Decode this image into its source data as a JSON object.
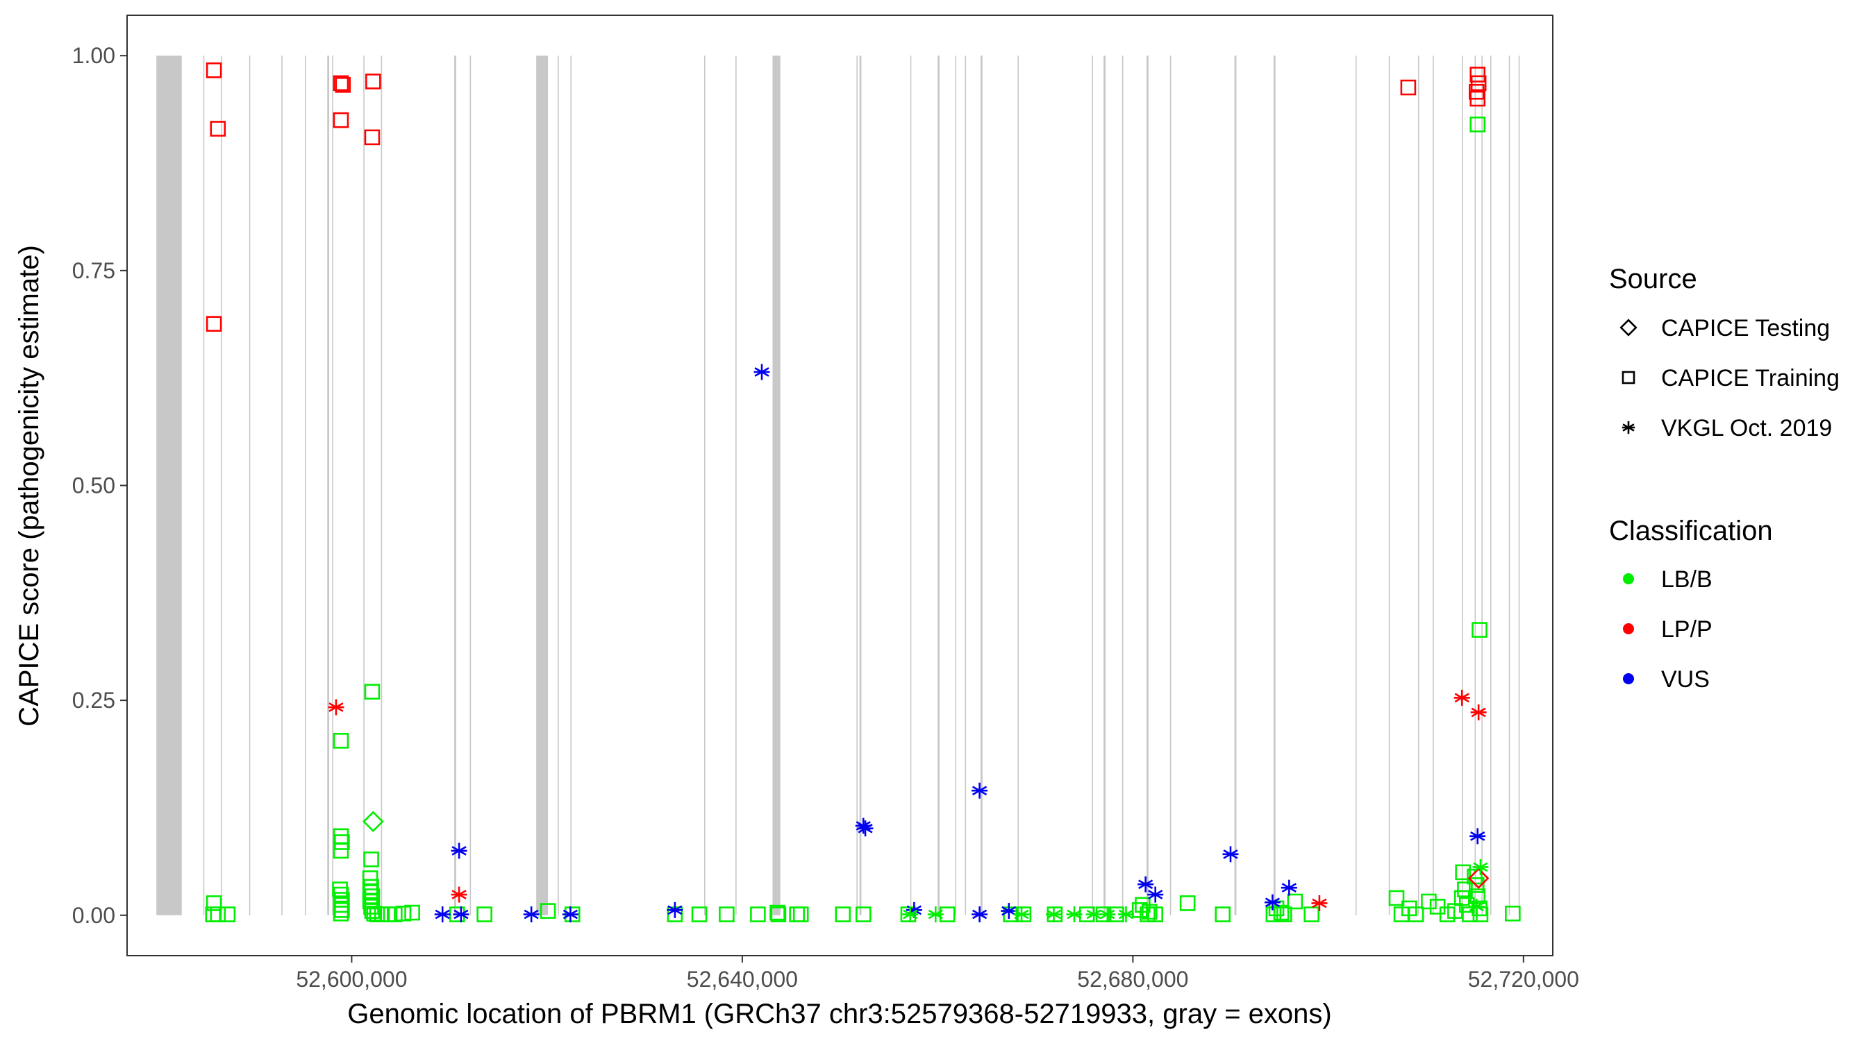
{
  "chart_data": {
    "type": "scatter",
    "title": "",
    "xlabel": "Genomic location of PBRM1 (GRCh37 chr3:52579368-52719933, gray = exons)",
    "ylabel": "CAPICE score (pathogenicity estimate)",
    "xlim": [
      52577000,
      52723000
    ],
    "ylim": [
      -0.047,
      1.047
    ],
    "x_ticks": [
      52600000,
      52640000,
      52680000,
      52720000
    ],
    "x_tick_labels": [
      "52,600,000",
      "52,640,000",
      "52,680,000",
      "52,720,000"
    ],
    "y_ticks": [
      0,
      0.25,
      0.5,
      0.75,
      1
    ],
    "y_tick_labels": [
      "0.00",
      "0.25",
      "0.50",
      "0.75",
      "1.00"
    ],
    "grid": false,
    "legend_position": "right",
    "exons": [
      [
        52580000,
        52582600
      ],
      [
        52584800,
        52584900
      ],
      [
        52586600,
        52586700
      ],
      [
        52589500,
        52589600
      ],
      [
        52592800,
        52592900
      ],
      [
        52595200,
        52595300
      ],
      [
        52597500,
        52597700
      ],
      [
        52598000,
        52598100
      ],
      [
        52601200,
        52601300
      ],
      [
        52603000,
        52603100
      ],
      [
        52610500,
        52610700
      ],
      [
        52612100,
        52612200
      ],
      [
        52618900,
        52620100
      ],
      [
        52621100,
        52621200
      ],
      [
        52622400,
        52622500
      ],
      [
        52636100,
        52636200
      ],
      [
        52639300,
        52639400
      ],
      [
        52643100,
        52643900
      ],
      [
        52651700,
        52651800
      ],
      [
        52652000,
        52652200
      ],
      [
        52657200,
        52657300
      ],
      [
        52660000,
        52660200
      ],
      [
        52661800,
        52661900
      ],
      [
        52662800,
        52662900
      ],
      [
        52664400,
        52664600
      ],
      [
        52668200,
        52668300
      ],
      [
        52675800,
        52675900
      ],
      [
        52677000,
        52677200
      ],
      [
        52678900,
        52679000
      ],
      [
        52681400,
        52681600
      ],
      [
        52683800,
        52683900
      ],
      [
        52690400,
        52690600
      ],
      [
        52694400,
        52694600
      ],
      [
        52702800,
        52702900
      ],
      [
        52706200,
        52706300
      ],
      [
        52709200,
        52709300
      ],
      [
        52710700,
        52710800
      ],
      [
        52713700,
        52713800
      ],
      [
        52715000,
        52715100
      ],
      [
        52715700,
        52715800
      ],
      [
        52716600,
        52716700
      ],
      [
        52718500,
        52718600
      ],
      [
        52719500,
        52719600
      ]
    ],
    "legend": {
      "source_title": "Source",
      "source_items": [
        {
          "label": "CAPICE Testing",
          "shape": "diamond"
        },
        {
          "label": "CAPICE Training",
          "shape": "square"
        },
        {
          "label": "VKGL Oct. 2019",
          "shape": "asterisk"
        }
      ],
      "class_title": "Classification",
      "class_items": [
        {
          "label": "LB/B",
          "color": "#00ee00"
        },
        {
          "label": "LP/P",
          "color": "#ff0000"
        },
        {
          "label": "VUS",
          "color": "#0000ee"
        }
      ]
    },
    "series": [
      {
        "name": "CAPICE Training",
        "shape": "square",
        "points": [
          [
            52585900,
            0.983,
            "LP/P"
          ],
          [
            52586300,
            0.915,
            "LP/P"
          ],
          [
            52585900,
            0.688,
            "LP/P"
          ],
          [
            52598900,
            0.968,
            "LP/P"
          ],
          [
            52599100,
            0.966,
            "LP/P"
          ],
          [
            52598900,
            0.925,
            "LP/P"
          ],
          [
            52602200,
            0.97,
            "LP/P"
          ],
          [
            52602100,
            0.905,
            "LP/P"
          ],
          [
            52708200,
            0.963,
            "LP/P"
          ],
          [
            52715300,
            0.978,
            "LP/P"
          ],
          [
            52715400,
            0.968,
            "LP/P"
          ],
          [
            52715200,
            0.958,
            "LP/P"
          ],
          [
            52715300,
            0.95,
            "LP/P"
          ],
          [
            52715300,
            0.92,
            "LB/B"
          ],
          [
            52715500,
            0.332,
            "LB/B"
          ],
          [
            52602100,
            0.26,
            "LB/B"
          ],
          [
            52598900,
            0.203,
            "LB/B"
          ],
          [
            52598900,
            0.092,
            "LB/B"
          ],
          [
            52599000,
            0.085,
            "LB/B"
          ],
          [
            52598900,
            0.075,
            "LB/B"
          ],
          [
            52602000,
            0.065,
            "LB/B"
          ],
          [
            52601900,
            0.043,
            "LB/B"
          ],
          [
            52602000,
            0.033,
            "LB/B"
          ],
          [
            52598800,
            0.03,
            "LB/B"
          ],
          [
            52598900,
            0.024,
            "LB/B"
          ],
          [
            52599000,
            0.018,
            "LB/B"
          ],
          [
            52598900,
            0.012,
            "LB/B"
          ],
          [
            52599000,
            0.006,
            "LB/B"
          ],
          [
            52598900,
            0.002,
            "LB/B"
          ],
          [
            52601900,
            0.028,
            "LB/B"
          ],
          [
            52602100,
            0.022,
            "LB/B"
          ],
          [
            52601900,
            0.016,
            "LB/B"
          ],
          [
            52602000,
            0.01,
            "LB/B"
          ],
          [
            52602100,
            0.005,
            "LB/B"
          ],
          [
            52602300,
            0.002,
            "LB/B"
          ],
          [
            52602600,
            0.001,
            "LB/B"
          ],
          [
            52603100,
            0.001,
            "LB/B"
          ],
          [
            52603700,
            0.001,
            "LB/B"
          ],
          [
            52604400,
            0.001,
            "LB/B"
          ],
          [
            52605300,
            0.002,
            "LB/B"
          ],
          [
            52606200,
            0.003,
            "LB/B"
          ],
          [
            52585900,
            0.014,
            "LB/B"
          ],
          [
            52585800,
            0.001,
            "LB/B"
          ],
          [
            52586300,
            0.001,
            "LB/B"
          ],
          [
            52587300,
            0.001,
            "LB/B"
          ],
          [
            52610800,
            0.001,
            "LB/B"
          ],
          [
            52613600,
            0.001,
            "LB/B"
          ],
          [
            52620100,
            0.005,
            "LB/B"
          ],
          [
            52622600,
            0.001,
            "LB/B"
          ],
          [
            52633100,
            0.001,
            "LB/B"
          ],
          [
            52635600,
            0.001,
            "LB/B"
          ],
          [
            52638400,
            0.001,
            "LB/B"
          ],
          [
            52641600,
            0.001,
            "LB/B"
          ],
          [
            52643600,
            0.003,
            "LB/B"
          ],
          [
            52643700,
            0.001,
            "LB/B"
          ],
          [
            52645600,
            0.001,
            "LB/B"
          ],
          [
            52646000,
            0.001,
            "LB/B"
          ],
          [
            52650300,
            0.001,
            "LB/B"
          ],
          [
            52652400,
            0.001,
            "LB/B"
          ],
          [
            52657000,
            0.001,
            "LB/B"
          ],
          [
            52661000,
            0.001,
            "LB/B"
          ],
          [
            52667500,
            0.001,
            "LB/B"
          ],
          [
            52668800,
            0.001,
            "LB/B"
          ],
          [
            52672000,
            0.001,
            "LB/B"
          ],
          [
            52675300,
            0.001,
            "LB/B"
          ],
          [
            52677000,
            0.001,
            "LB/B"
          ],
          [
            52678300,
            0.001,
            "LB/B"
          ],
          [
            52680700,
            0.006,
            "LB/B"
          ],
          [
            52681000,
            0.012,
            "LB/B"
          ],
          [
            52681500,
            0.001,
            "LB/B"
          ],
          [
            52681700,
            0.004,
            "LB/B"
          ],
          [
            52682300,
            0.001,
            "LB/B"
          ],
          [
            52685600,
            0.014,
            "LB/B"
          ],
          [
            52689200,
            0.001,
            "LB/B"
          ],
          [
            52694400,
            0.001,
            "LB/B"
          ],
          [
            52694700,
            0.008,
            "LB/B"
          ],
          [
            52695200,
            0.003,
            "LB/B"
          ],
          [
            52695500,
            0.001,
            "LB/B"
          ],
          [
            52696600,
            0.016,
            "LB/B"
          ],
          [
            52698300,
            0.001,
            "LB/B"
          ],
          [
            52707000,
            0.02,
            "LB/B"
          ],
          [
            52707500,
            0.001,
            "LB/B"
          ],
          [
            52708300,
            0.008,
            "LB/B"
          ],
          [
            52709000,
            0.001,
            "LB/B"
          ],
          [
            52710300,
            0.016,
            "LB/B"
          ],
          [
            52711200,
            0.01,
            "LB/B"
          ],
          [
            52712200,
            0.001,
            "LB/B"
          ],
          [
            52713000,
            0.005,
            "LB/B"
          ],
          [
            52713700,
            0.02,
            "LB/B"
          ],
          [
            52713800,
            0.05,
            "LB/B"
          ],
          [
            52714000,
            0.03,
            "LB/B"
          ],
          [
            52714200,
            0.012,
            "LB/B"
          ],
          [
            52714500,
            0.001,
            "LB/B"
          ],
          [
            52715000,
            0.045,
            "LB/B"
          ],
          [
            52715200,
            0.035,
            "LB/B"
          ],
          [
            52715300,
            0.022,
            "LB/B"
          ],
          [
            52715500,
            0.008,
            "LB/B"
          ],
          [
            52715600,
            0.001,
            "LB/B"
          ],
          [
            52718900,
            0.002,
            "LB/B"
          ]
        ]
      },
      {
        "name": "CAPICE Testing",
        "shape": "diamond",
        "points": [
          [
            52602200,
            0.109,
            "LB/B"
          ],
          [
            52715400,
            0.043,
            "LP/P"
          ]
        ]
      },
      {
        "name": "VKGL Oct. 2019",
        "shape": "asterisk",
        "points": [
          [
            52598400,
            0.242,
            "LP/P"
          ],
          [
            52611000,
            0.024,
            "LP/P"
          ],
          [
            52699100,
            0.014,
            "LP/P"
          ],
          [
            52713700,
            0.253,
            "LP/P"
          ],
          [
            52715400,
            0.236,
            "LP/P"
          ],
          [
            52642000,
            0.632,
            "VUS"
          ],
          [
            52664300,
            0.145,
            "VUS"
          ],
          [
            52652400,
            0.104,
            "VUS"
          ],
          [
            52652600,
            0.101,
            "VUS"
          ],
          [
            52611000,
            0.075,
            "VUS"
          ],
          [
            52690000,
            0.071,
            "VUS"
          ],
          [
            52715300,
            0.092,
            "VUS"
          ],
          [
            52681300,
            0.036,
            "VUS"
          ],
          [
            52696000,
            0.032,
            "VUS"
          ],
          [
            52682300,
            0.024,
            "VUS"
          ],
          [
            52694300,
            0.015,
            "VUS"
          ],
          [
            52633100,
            0.006,
            "VUS"
          ],
          [
            52657600,
            0.006,
            "VUS"
          ],
          [
            52667300,
            0.005,
            "VUS"
          ],
          [
            52609300,
            0.001,
            "VUS"
          ],
          [
            52611200,
            0.001,
            "VUS"
          ],
          [
            52618400,
            0.001,
            "VUS"
          ],
          [
            52622400,
            0.001,
            "VUS"
          ],
          [
            52664300,
            0.001,
            "VUS"
          ],
          [
            52657200,
            0.001,
            "LB/B"
          ],
          [
            52659800,
            0.001,
            "LB/B"
          ],
          [
            52668600,
            0.001,
            "LB/B"
          ],
          [
            52671900,
            0.001,
            "LB/B"
          ],
          [
            52674000,
            0.001,
            "LB/B"
          ],
          [
            52676000,
            0.001,
            "LB/B"
          ],
          [
            52677400,
            0.001,
            "LB/B"
          ],
          [
            52679300,
            0.001,
            "LB/B"
          ],
          [
            52715600,
            0.056,
            "LB/B"
          ],
          [
            52715200,
            0.01,
            "LB/B"
          ]
        ]
      }
    ]
  }
}
